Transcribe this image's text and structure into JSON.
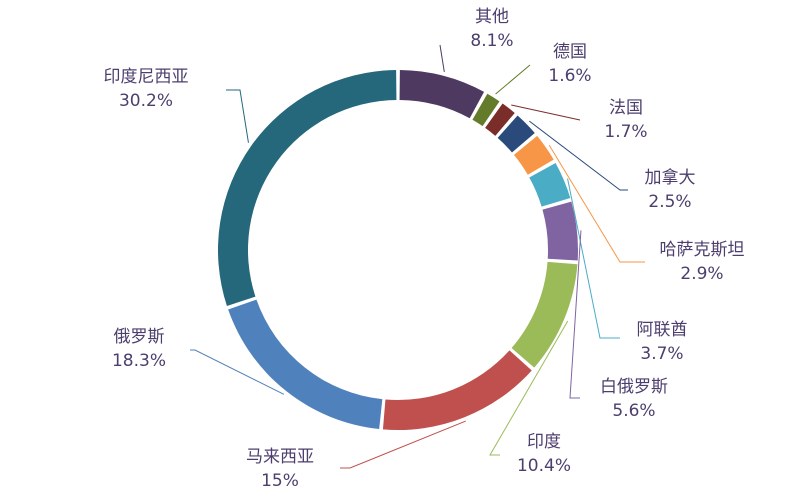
{
  "chart_data": {
    "type": "pie",
    "donut": true,
    "title": "",
    "slices": [
      {
        "name": "其他",
        "value": 8.1,
        "label": "8.1%",
        "color": "#4e3a61"
      },
      {
        "name": "德国",
        "value": 1.6,
        "label": "1.6%",
        "color": "#637b2b"
      },
      {
        "name": "法国",
        "value": 1.7,
        "label": "1.7%",
        "color": "#7b2d2a"
      },
      {
        "name": "加拿大",
        "value": 2.5,
        "label": "2.5%",
        "color": "#2a4a7b"
      },
      {
        "name": "哈萨克斯坦",
        "value": 2.9,
        "label": "2.9%",
        "color": "#f79646"
      },
      {
        "name": "阿联酋",
        "value": 3.7,
        "label": "3.7%",
        "color": "#4bacc6"
      },
      {
        "name": "白俄罗斯",
        "value": 5.6,
        "label": "5.6%",
        "color": "#8064a2"
      },
      {
        "name": "印度",
        "value": 10.4,
        "label": "10.4%",
        "color": "#9bbb59"
      },
      {
        "name": "马来西亚",
        "value": 15,
        "label": "15%",
        "color": "#c0504d"
      },
      {
        "name": "俄罗斯",
        "value": 18.3,
        "label": "18.3%",
        "color": "#4f81bd"
      },
      {
        "name": "印度尼西亚",
        "value": 30.2,
        "label": "30.2%",
        "color": "#25677b"
      }
    ]
  }
}
